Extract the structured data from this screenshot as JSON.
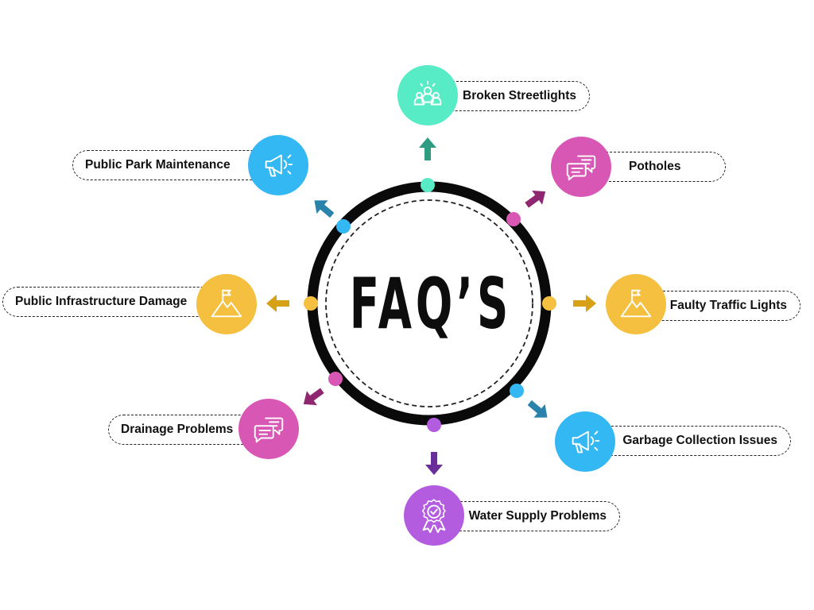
{
  "center": {
    "title": "FAQ’S"
  },
  "colors": {
    "mint": "#57EBC6",
    "mint_dark": "#2E9C83",
    "pink": "#D957B4",
    "pink_dark": "#8E2670",
    "amber": "#F5C040",
    "amber_dark": "#D6A116",
    "sky": "#34B8F3",
    "sky_dark": "#2A83AB",
    "violet": "#B45CE0",
    "violet_dark": "#6A2D99",
    "ring": "#0a0a0a"
  },
  "topics": [
    {
      "id": "broken-streetlights",
      "label": "Broken Streetlights",
      "icon": "people-spark-icon",
      "color": "#57EBC6"
    },
    {
      "id": "potholes",
      "label": "Potholes",
      "icon": "chat-bubbles-icon",
      "color": "#D957B4"
    },
    {
      "id": "faulty-traffic-lights",
      "label": "Faulty Traffic Lights",
      "icon": "mountain-flag-icon",
      "color": "#F5C040"
    },
    {
      "id": "garbage-collection-issues",
      "label": "Garbage Collection Issues",
      "icon": "megaphone-icon",
      "color": "#34B8F3"
    },
    {
      "id": "water-supply-problems",
      "label": "Water Supply Problems",
      "icon": "award-badge-icon",
      "color": "#B45CE0"
    },
    {
      "id": "drainage-problems",
      "label": "Drainage Problems",
      "icon": "chat-bubbles-icon",
      "color": "#D957B4"
    },
    {
      "id": "public-infrastructure-damage",
      "label": "Public Infrastructure Damage",
      "icon": "mountain-flag-icon",
      "color": "#F5C040"
    },
    {
      "id": "public-park-maintenance",
      "label": "Public Park Maintenance",
      "icon": "megaphone-icon",
      "color": "#34B8F3"
    }
  ]
}
